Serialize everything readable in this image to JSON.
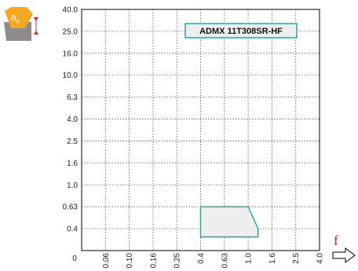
{
  "chart_data": {
    "type": "area",
    "title": "",
    "xlabel": "f",
    "ylabel": "",
    "x_axis": {
      "tick_labels": [
        "0",
        "0.06",
        "0.10",
        "0.16",
        "0.25",
        "0.4",
        "0.63",
        "1.0",
        "1.6",
        "2.5",
        "4.0"
      ],
      "range": [
        "0",
        "4.0"
      ],
      "scale": "stepped (non-linear)"
    },
    "y_axis": {
      "tick_labels": [
        "0",
        "0.4",
        "0.63",
        "1.0",
        "1.6",
        "2.5",
        "4.0",
        "6.3",
        "10.0",
        "16.0",
        "25.0",
        "40.0"
      ],
      "range": [
        "0",
        "40.0"
      ],
      "scale": "stepped (non-linear)"
    },
    "grid": true,
    "annotation": "ADMX 11T308SR-HF",
    "ap_label": "a",
    "ap_subscript": "p",
    "region": {
      "fill": "#eeeeee",
      "stroke": "#2aa79b",
      "polygon": [
        {
          "x": 0.4,
          "y": 0.63
        },
        {
          "x": 1.0,
          "y": 0.63
        },
        {
          "x": 1.25,
          "y": 0.4
        },
        {
          "x": 1.25,
          "y": 0.25
        },
        {
          "x": 0.4,
          "y": 0.25
        }
      ]
    },
    "colors": {
      "accent_red": "#e02020",
      "teal": "#2aa79b",
      "insert_icon_orange": "#f5a623",
      "insert_icon_gray": "#8c8c8c"
    }
  }
}
